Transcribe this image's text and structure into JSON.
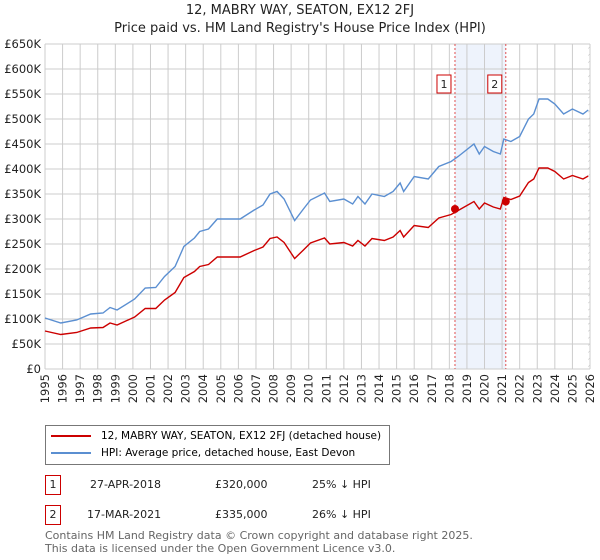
{
  "chart_data": {
    "type": "line",
    "title": "12, MABRY WAY, SEATON, EX12 2FJ",
    "subtitle": "Price paid vs. HM Land Registry's House Price Index (HPI)",
    "xlim": [
      1995,
      2026
    ],
    "ylim": [
      0,
      650000
    ],
    "y_ticks": [
      "£0",
      "£50K",
      "£100K",
      "£150K",
      "£200K",
      "£250K",
      "£300K",
      "£350K",
      "£400K",
      "£450K",
      "£500K",
      "£550K",
      "£600K",
      "£650K"
    ],
    "x_ticks": [
      "1995",
      "1996",
      "1997",
      "1998",
      "1999",
      "2000",
      "2001",
      "2002",
      "2003",
      "2004",
      "2005",
      "2006",
      "2007",
      "2008",
      "2009",
      "2010",
      "2011",
      "2012",
      "2013",
      "2014",
      "2015",
      "2016",
      "2017",
      "2018",
      "2019",
      "2020",
      "2021",
      "2022",
      "2023",
      "2024",
      "2025",
      "2026"
    ],
    "x": [
      1995,
      1995.9,
      1996.8,
      1997.6,
      1998.3,
      1998.7,
      1999.1,
      2000.1,
      2000.7,
      2001.3,
      2001.8,
      2002.4,
      2002.9,
      2003.5,
      2003.8,
      2004.3,
      2004.8,
      2006.1,
      2006.9,
      2007.4,
      2007.8,
      2008.2,
      2008.6,
      2009.2,
      2009.7,
      2010.1,
      2010.9,
      2011.2,
      2012,
      2012.5,
      2012.8,
      2013.2,
      2013.6,
      2014.3,
      2014.8,
      2015.2,
      2015.4,
      2016,
      2016.8,
      2017.4,
      2018.1,
      2018.5,
      2019.4,
      2019.7,
      2020,
      2020.5,
      2020.9,
      2021.1,
      2021.5,
      2022,
      2022.5,
      2022.8,
      2023.1,
      2023.6,
      2024,
      2024.5,
      2025,
      2025.6,
      2025.9
    ],
    "series": [
      {
        "name": "12, MABRY WAY, SEATON, EX12 2FJ (detached house)",
        "color": "#cc0000",
        "values": [
          76,
          69,
          73,
          82,
          83,
          92,
          88,
          104,
          121,
          121,
          138,
          153,
          183,
          195,
          205,
          209,
          224,
          224,
          237,
          244,
          261,
          264,
          253,
          221,
          238,
          252,
          262,
          250,
          253,
          246,
          257,
          246,
          261,
          257,
          264,
          277,
          264,
          287,
          283,
          302,
          309,
          317,
          335,
          320,
          332,
          324,
          320,
          343,
          339,
          346,
          373,
          380,
          402,
          402,
          395,
          380,
          387,
          380,
          386
        ]
      },
      {
        "name": "HPI: Average price, detached house, East Devon",
        "color": "#5b8fd1",
        "values": [
          102,
          92,
          98,
          110,
          112,
          123,
          118,
          140,
          162,
          163,
          185,
          205,
          245,
          262,
          275,
          280,
          300,
          300,
          318,
          328,
          350,
          355,
          340,
          297,
          320,
          338,
          352,
          335,
          340,
          330,
          345,
          330,
          350,
          345,
          355,
          372,
          355,
          385,
          380,
          405,
          415,
          425,
          450,
          430,
          445,
          435,
          430,
          460,
          455,
          465,
          500,
          510,
          540,
          540,
          530,
          510,
          520,
          510,
          518
        ]
      }
    ],
    "value_unit": "£K",
    "sales": [
      {
        "id": "1",
        "year": 2018.32,
        "value": 320,
        "date": "27-APR-2018",
        "price": "£320,000",
        "hpi": "25% ↓ HPI"
      },
      {
        "id": "2",
        "year": 2021.21,
        "value": 335,
        "date": "17-MAR-2021",
        "price": "£335,000",
        "hpi": "26% ↓ HPI"
      }
    ],
    "shaded_range": [
      2018.32,
      2021.21
    ],
    "forecast_hatch_from": 2025.9,
    "legend_position": "bottom",
    "grid": true
  },
  "footer": [
    "Contains HM Land Registry data © Crown copyright and database right 2025.",
    "This data is licensed under the Open Government Licence v3.0."
  ]
}
